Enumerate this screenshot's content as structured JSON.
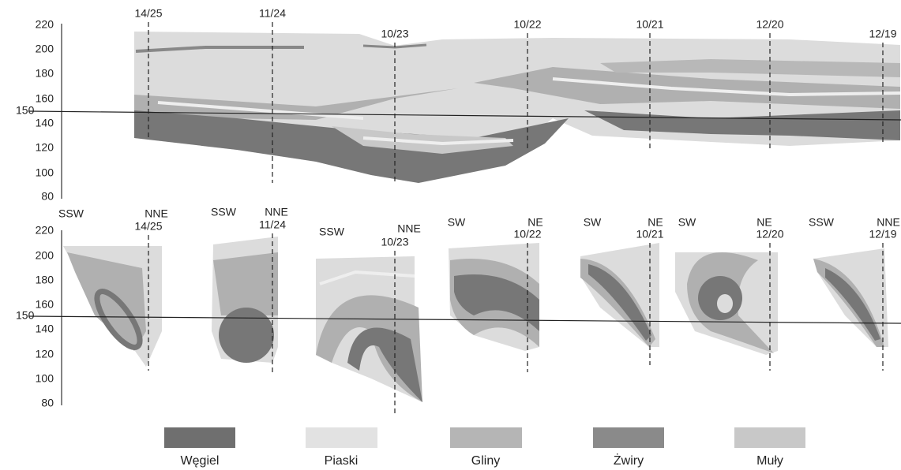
{
  "top_section": {
    "y_axis_labels": [
      "220",
      "200",
      "180",
      "160",
      "140",
      "120",
      "100",
      "80"
    ],
    "reference_label": "150",
    "boreholes": [
      "14/25",
      "11/24",
      "10/23",
      "10/22",
      "10/21",
      "12/20",
      "12/19"
    ]
  },
  "bottom_section": {
    "y_axis_labels": [
      "220",
      "200",
      "180",
      "160",
      "140",
      "120",
      "100",
      "80"
    ],
    "reference_label": "150",
    "profiles": [
      {
        "left": "SSW",
        "right": "NNE",
        "borehole": "14/25"
      },
      {
        "left": "SSW",
        "right": "NNE",
        "borehole": "11/24"
      },
      {
        "left": "SSW",
        "right": "NNE",
        "borehole": "10/23"
      },
      {
        "left": "SW",
        "right": "NE",
        "borehole": "10/22"
      },
      {
        "left": "SW",
        "right": "NE",
        "borehole": "10/21"
      },
      {
        "left": "SW",
        "right": "NE",
        "borehole": "12/20"
      },
      {
        "left": "SSW",
        "right": "NNE",
        "borehole": "12/19"
      }
    ]
  },
  "legend": [
    "Węgiel",
    "Piaski",
    "Gliny",
    "Żwiry",
    "Muły"
  ]
}
